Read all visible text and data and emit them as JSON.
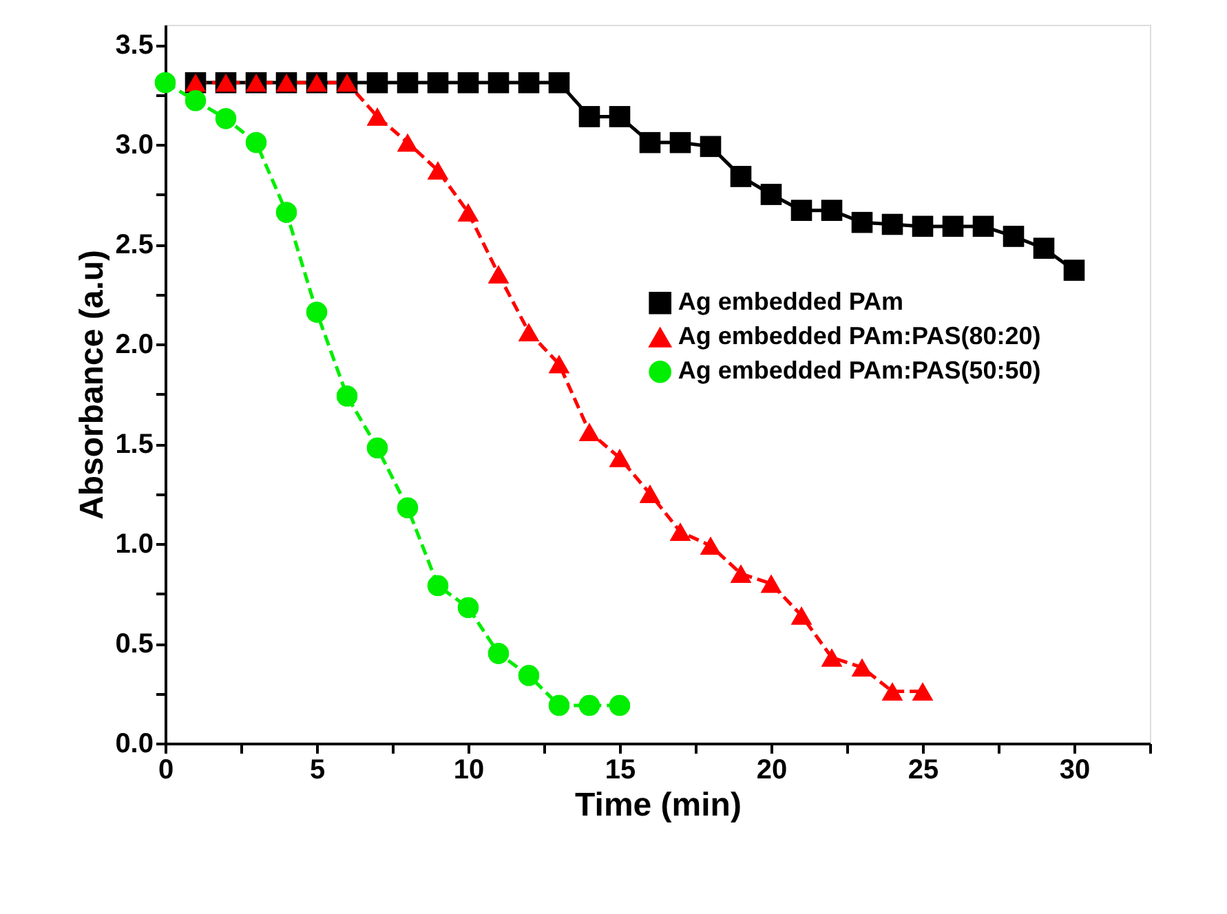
{
  "chart_data": {
    "type": "line",
    "xlabel": "Time (min)",
    "ylabel": "Absorbance (a.u)",
    "xlim": [
      0,
      32.5
    ],
    "ylim": [
      0,
      3.6
    ],
    "xticks": [
      0,
      {
        "value": 2.5,
        "label": null
      },
      5,
      {
        "value": 7.5,
        "label": null
      },
      10,
      {
        "value": 12.5,
        "label": null
      },
      15,
      {
        "value": 17.5,
        "label": null
      },
      20,
      {
        "value": 22.5,
        "label": null
      },
      25,
      {
        "value": 27.5,
        "label": null
      },
      30,
      {
        "value": 32.5,
        "label": null
      }
    ],
    "yticks": [
      {
        "value": 0,
        "label": "0.0"
      },
      {
        "value": 0.25,
        "label": null
      },
      0.5,
      {
        "value": 0.75,
        "label": null
      },
      {
        "value": 1,
        "label": "1.0"
      },
      {
        "value": 1.25,
        "label": null
      },
      1.5,
      {
        "value": 1.75,
        "label": null
      },
      {
        "value": 2,
        "label": "2.0"
      },
      {
        "value": 2.25,
        "label": null
      },
      2.5,
      {
        "value": 2.75,
        "label": null
      },
      {
        "value": 3,
        "label": "3.0"
      },
      {
        "value": 3.25,
        "label": null
      },
      3.5
    ],
    "grid": false,
    "legend": "right",
    "series": [
      {
        "name": "Ag embedded PAm",
        "color": "#000000",
        "marker": "square",
        "line_style": "solid",
        "x": [
          1,
          2,
          3,
          4,
          5,
          6,
          7,
          8,
          9,
          10,
          11,
          12,
          13,
          14,
          15,
          16,
          17,
          18,
          19,
          20,
          21,
          22,
          23,
          24,
          25,
          26,
          27,
          28,
          29,
          30
        ],
        "values": [
          3.31,
          3.31,
          3.31,
          3.31,
          3.31,
          3.31,
          3.31,
          3.31,
          3.31,
          3.31,
          3.31,
          3.31,
          3.31,
          3.14,
          3.14,
          3.01,
          3.01,
          2.99,
          2.84,
          2.75,
          2.67,
          2.67,
          2.61,
          2.6,
          2.59,
          2.59,
          2.59,
          2.54,
          2.48,
          2.37
        ]
      },
      {
        "name": "Ag embedded PAm:PAS(80:20)",
        "color": "#ff0000",
        "marker": "triangle",
        "line_style": "dashed",
        "x": [
          1,
          2,
          3,
          4,
          5,
          6,
          7,
          8,
          9,
          10,
          11,
          12,
          13,
          14,
          15,
          16,
          17,
          18,
          19,
          20,
          21,
          22,
          23,
          24,
          25
        ],
        "values": [
          3.31,
          3.31,
          3.31,
          3.31,
          3.31,
          3.31,
          3.14,
          3.01,
          2.87,
          2.66,
          2.35,
          2.06,
          1.9,
          1.56,
          1.43,
          1.25,
          1.06,
          0.99,
          0.85,
          0.8,
          0.64,
          0.43,
          0.38,
          0.26,
          0.26
        ]
      },
      {
        "name": "Ag embedded PAm:PAS(50:50)",
        "color": "#00ee00",
        "marker": "circle",
        "line_style": "dashed",
        "x": [
          0,
          1,
          2,
          3,
          4,
          5,
          6,
          7,
          8,
          9,
          10,
          11,
          12,
          13,
          14,
          15
        ],
        "values": [
          3.31,
          3.22,
          3.13,
          3.01,
          2.66,
          2.16,
          1.74,
          1.48,
          1.18,
          0.79,
          0.68,
          0.45,
          0.34,
          0.19,
          0.19,
          0.19
        ]
      }
    ]
  }
}
